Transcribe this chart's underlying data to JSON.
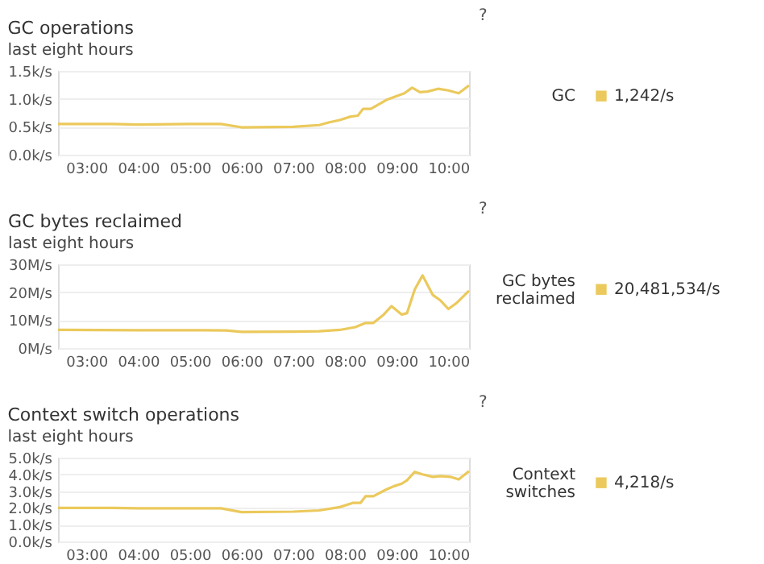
{
  "chart_data": [
    {
      "type": "line",
      "title": "GC operations",
      "subtitle": "last eight hours",
      "annotations": [
        "?",
        "1,242/s"
      ],
      "legend": "right",
      "grid": "y",
      "marker": "none",
      "line_style": "solid",
      "xlim": [
        2.45,
        10.4
      ],
      "xticks": [
        {
          "value": 3,
          "label": "03:00"
        },
        {
          "value": 4,
          "label": "04:00"
        },
        {
          "value": 5,
          "label": "05:00"
        },
        {
          "value": 6,
          "label": "06:00"
        },
        {
          "value": 7,
          "label": "07:00"
        },
        {
          "value": 8,
          "label": "08:00"
        },
        {
          "value": 9,
          "label": "09:00"
        },
        {
          "value": 10,
          "label": "10:00"
        }
      ],
      "ylim": [
        0,
        1.5
      ],
      "yticks": [
        {
          "value": 0,
          "label": "0.0k/s"
        },
        {
          "value": 0.5,
          "label": "0.5k/s"
        },
        {
          "value": 1.0,
          "label": "1.0k/s"
        },
        {
          "value": 1.5,
          "label": "1.5k/s"
        }
      ],
      "series": [
        {
          "name": "GC",
          "color": "#ebc95c",
          "x": [
            2.45,
            3.5,
            4.0,
            5.0,
            5.6,
            6.0,
            7.0,
            7.5,
            7.7,
            7.9,
            8.1,
            8.25,
            8.35,
            8.5,
            8.8,
            9.0,
            9.15,
            9.3,
            9.45,
            9.6,
            9.8,
            10.0,
            10.2,
            10.4
          ],
          "values": [
            0.55,
            0.55,
            0.54,
            0.55,
            0.55,
            0.49,
            0.5,
            0.53,
            0.58,
            0.62,
            0.68,
            0.7,
            0.82,
            0.82,
            0.98,
            1.05,
            1.1,
            1.2,
            1.12,
            1.13,
            1.18,
            1.15,
            1.1,
            1.24
          ]
        }
      ]
    },
    {
      "type": "line",
      "title": "GC bytes reclaimed",
      "subtitle": "last eight hours",
      "annotations": [
        "?",
        "20,481,534/s"
      ],
      "legend": "right",
      "grid": "y",
      "marker": "none",
      "line_style": "solid",
      "xlim": [
        2.45,
        10.4
      ],
      "xticks": [
        {
          "value": 3,
          "label": "03:00"
        },
        {
          "value": 4,
          "label": "04:00"
        },
        {
          "value": 5,
          "label": "05:00"
        },
        {
          "value": 6,
          "label": "06:00"
        },
        {
          "value": 7,
          "label": "07:00"
        },
        {
          "value": 8,
          "label": "08:00"
        },
        {
          "value": 9,
          "label": "09:00"
        },
        {
          "value": 10,
          "label": "10:00"
        }
      ],
      "ylim": [
        0,
        30
      ],
      "yticks": [
        {
          "value": 0,
          "label": "0M/s"
        },
        {
          "value": 10,
          "label": "10M/s"
        },
        {
          "value": 20,
          "label": "20M/s"
        },
        {
          "value": 30,
          "label": "30M/s"
        }
      ],
      "series": [
        {
          "name": "GC bytes reclaimed",
          "color": "#ebc95c",
          "x": [
            2.45,
            4.0,
            5.0,
            5.7,
            6.0,
            7.0,
            7.5,
            7.9,
            8.2,
            8.4,
            8.55,
            8.75,
            8.9,
            9.1,
            9.2,
            9.35,
            9.5,
            9.7,
            9.85,
            10.0,
            10.15,
            10.4
          ],
          "values": [
            6.5,
            6.4,
            6.4,
            6.3,
            5.8,
            5.9,
            6.0,
            6.5,
            7.5,
            9,
            9,
            12,
            15,
            12,
            12.5,
            21,
            26,
            19,
            17,
            14,
            16,
            20.5
          ]
        }
      ]
    },
    {
      "type": "line",
      "title": "Context switch operations",
      "subtitle": "last eight hours",
      "annotations": [
        "?",
        "4,218/s"
      ],
      "legend": "right",
      "grid": "y",
      "marker": "none",
      "line_style": "solid",
      "xlim": [
        2.45,
        10.4
      ],
      "xticks": [
        {
          "value": 3,
          "label": "03:00"
        },
        {
          "value": 4,
          "label": "04:00"
        },
        {
          "value": 5,
          "label": "05:00"
        },
        {
          "value": 6,
          "label": "06:00"
        },
        {
          "value": 7,
          "label": "07:00"
        },
        {
          "value": 8,
          "label": "08:00"
        },
        {
          "value": 9,
          "label": "09:00"
        },
        {
          "value": 10,
          "label": "10:00"
        }
      ],
      "ylim": [
        0,
        5
      ],
      "yticks": [
        {
          "value": 0,
          "label": "0.0k/s"
        },
        {
          "value": 1,
          "label": "1.0k/s"
        },
        {
          "value": 2,
          "label": "2.0k/s"
        },
        {
          "value": 3,
          "label": "3.0k/s"
        },
        {
          "value": 4,
          "label": "4.0k/s"
        },
        {
          "value": 5,
          "label": "5.0k/s"
        }
      ],
      "series": [
        {
          "name": "Context switches",
          "color": "#ebc95c",
          "x": [
            2.45,
            3.5,
            4.0,
            5.0,
            5.6,
            6.0,
            7.0,
            7.5,
            7.9,
            8.15,
            8.3,
            8.4,
            8.55,
            8.8,
            8.95,
            9.1,
            9.2,
            9.35,
            9.5,
            9.7,
            9.85,
            10.05,
            10.2,
            10.4
          ],
          "values": [
            2.0,
            2.0,
            1.98,
            1.98,
            1.98,
            1.75,
            1.78,
            1.85,
            2.05,
            2.3,
            2.3,
            2.7,
            2.7,
            3.1,
            3.3,
            3.45,
            3.65,
            4.15,
            4.0,
            3.85,
            3.9,
            3.85,
            3.7,
            4.2
          ]
        }
      ]
    }
  ]
}
